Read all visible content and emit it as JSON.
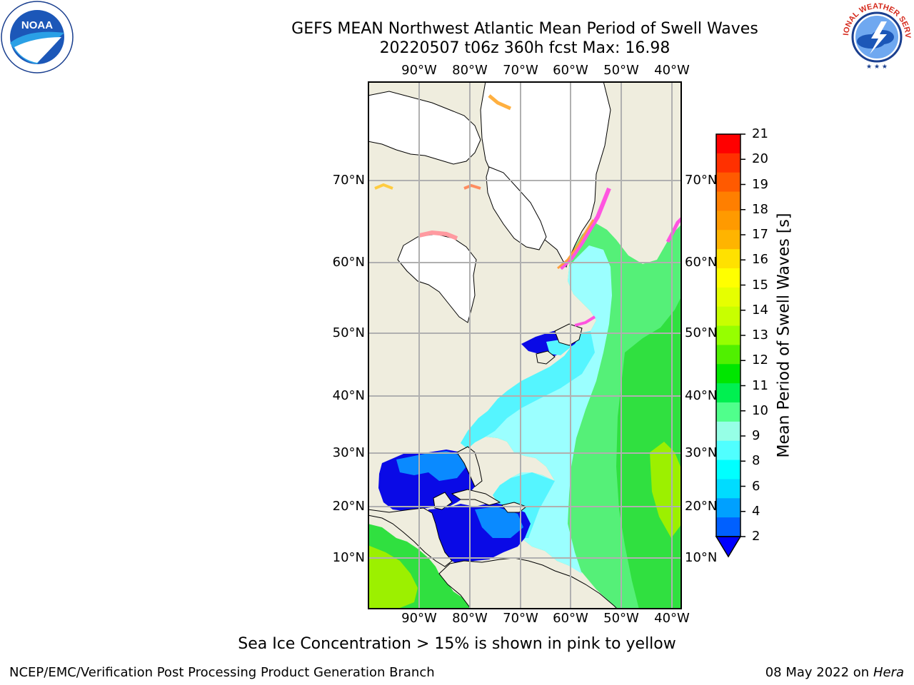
{
  "title": {
    "line1": "GEFS MEAN Northwest Atlantic Mean Period of Swell Waves",
    "line2": "20220507 t06z 360h fcst   Max: 16.98"
  },
  "longitude_labels": [
    "90°W",
    "80°W",
    "70°W",
    "60°W",
    "50°W",
    "40°W"
  ],
  "latitude_labels": [
    "70°N",
    "60°N",
    "50°N",
    "40°N",
    "30°N",
    "20°N",
    "10°N"
  ],
  "colorbar": {
    "label": "Mean Period of Swell Waves [s]",
    "ticks": [
      "21",
      "20",
      "19",
      "18",
      "17",
      "16",
      "15",
      "14",
      "13",
      "12",
      "11",
      "10",
      "9",
      "8",
      "6",
      "4",
      "2"
    ],
    "colors_top_to_bottom": [
      "#ff0000",
      "#ff3000",
      "#ff5a00",
      "#ff7f00",
      "#ff9a00",
      "#ffb400",
      "#ffe100",
      "#ffff00",
      "#e6ff00",
      "#c8ff00",
      "#96ff00",
      "#50f000",
      "#00e600",
      "#00f050",
      "#50ff8c",
      "#96ffe6",
      "#50ffff",
      "#00ffff",
      "#00dcff",
      "#00a0ff",
      "#0060ff"
    ],
    "extend_below_color": "#0000ff"
  },
  "footnote": "Sea Ice Concentration > 15% is shown in pink to yellow",
  "footer": {
    "left": "NCEP/EMC/Verification Post Processing Product Generation Branch",
    "right_date": "08 May 2022 on",
    "right_host": "Hera"
  },
  "logos": {
    "left": "noaa-logo",
    "left_text": "NOAA",
    "right": "nws-logo",
    "right_text": "NATIONAL WEATHER SERVICE"
  },
  "colors": {
    "land": "#efedde",
    "ice_land": "#ffffff",
    "grid": "#b0b0b0",
    "gulf_deep": "#0a0ae6",
    "shelf_blue": "#0a8aff",
    "cyan": "#55f5ff",
    "light_cyan": "#9bffff",
    "green": "#55f078",
    "bright_green": "#30e040",
    "lime": "#9cf000"
  }
}
